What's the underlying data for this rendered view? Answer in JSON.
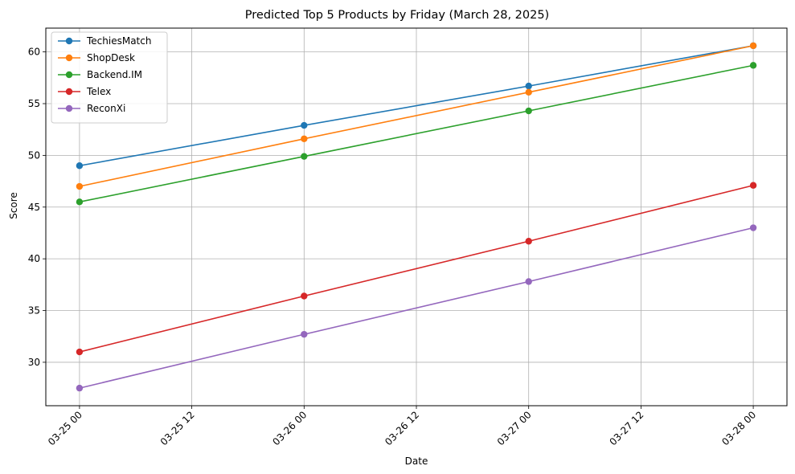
{
  "chart_data": {
    "type": "line",
    "title": "Predicted Top 5 Products by Friday (March 28, 2025)",
    "xlabel": "Date",
    "ylabel": "Score",
    "x": [
      "2025-03-25",
      "2025-03-26",
      "2025-03-27",
      "2025-03-28"
    ],
    "x_ticks": [
      "03-25 00",
      "03-25 12",
      "03-26 00",
      "03-26 12",
      "03-27 00",
      "03-27 12",
      "03-28 00"
    ],
    "y_ticks": [
      30,
      35,
      40,
      45,
      50,
      55,
      60
    ],
    "ylim": [
      25.8,
      62.3
    ],
    "grid": true,
    "legend_position": "top-left",
    "series": [
      {
        "name": "TechiesMatch",
        "color": "#1f77b4",
        "values": [
          49.0,
          52.9,
          56.7,
          60.6
        ]
      },
      {
        "name": "ShopDesk",
        "color": "#ff7f0e",
        "values": [
          47.0,
          51.6,
          56.1,
          60.6
        ]
      },
      {
        "name": "Backend.IM",
        "color": "#2ca02c",
        "values": [
          45.5,
          49.9,
          54.3,
          58.7
        ]
      },
      {
        "name": "Telex",
        "color": "#d62728",
        "values": [
          31.0,
          36.4,
          41.7,
          47.1
        ]
      },
      {
        "name": "ReconXi",
        "color": "#9467bd",
        "values": [
          27.5,
          32.7,
          37.8,
          43.0
        ]
      }
    ]
  }
}
